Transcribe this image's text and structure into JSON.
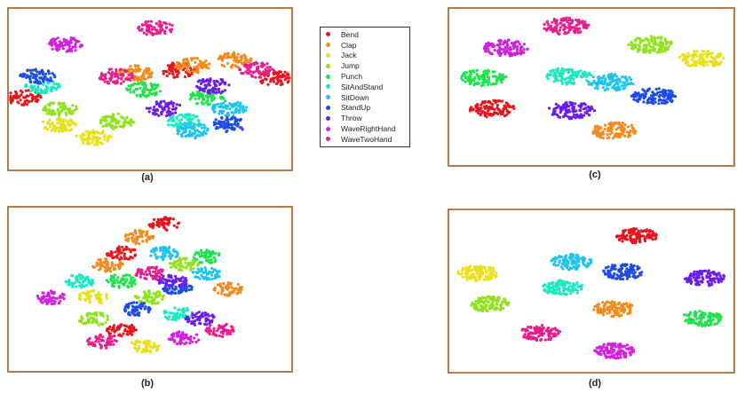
{
  "legend": [
    {
      "label": "Bend",
      "color": "#e8141c"
    },
    {
      "label": "Clap",
      "color": "#f28a1e"
    },
    {
      "label": "Jack",
      "color": "#e8e01a"
    },
    {
      "label": "Jump",
      "color": "#8fe31c"
    },
    {
      "label": "Punch",
      "color": "#1fe34d"
    },
    {
      "label": "SitAndStand",
      "color": "#1ee8c2"
    },
    {
      "label": "SitDown",
      "color": "#1ec4ee"
    },
    {
      "label": "StandUp",
      "color": "#1d4ae8"
    },
    {
      "label": "Throw",
      "color": "#6a1de8"
    },
    {
      "label": "WaveRightHand",
      "color": "#d41ee0"
    },
    {
      "label": "WaveTwoHand",
      "color": "#e81d8e"
    }
  ],
  "captions": {
    "a": "(a)",
    "b": "(b)",
    "c": "(c)",
    "d": "(d)"
  },
  "chart_data": [
    {
      "type": "scatter",
      "panel": "(a)",
      "series": [
        {
          "name": "Bend",
          "clusters": [
            [
              0.6,
              0.38
            ],
            [
              0.94,
              0.43
            ],
            [
              0.05,
              0.55
            ]
          ]
        },
        {
          "name": "Clap",
          "clusters": [
            [
              0.45,
              0.4
            ],
            [
              0.8,
              0.32
            ],
            [
              0.65,
              0.35
            ]
          ]
        },
        {
          "name": "Jack",
          "clusters": [
            [
              0.3,
              0.8
            ],
            [
              0.18,
              0.72
            ]
          ]
        },
        {
          "name": "Jump",
          "clusters": [
            [
              0.18,
              0.62
            ],
            [
              0.38,
              0.7
            ]
          ]
        },
        {
          "name": "Punch",
          "clusters": [
            [
              0.48,
              0.5
            ],
            [
              0.7,
              0.55
            ]
          ]
        },
        {
          "name": "SitAndStand",
          "clusters": [
            [
              0.12,
              0.48
            ],
            [
              0.62,
              0.7
            ]
          ]
        },
        {
          "name": "SitDown",
          "clusters": [
            [
              0.65,
              0.76
            ],
            [
              0.78,
              0.62
            ]
          ]
        },
        {
          "name": "StandUp",
          "clusters": [
            [
              0.1,
              0.42
            ],
            [
              0.78,
              0.72
            ]
          ]
        },
        {
          "name": "Throw",
          "clusters": [
            [
              0.55,
              0.62
            ],
            [
              0.72,
              0.48
            ]
          ]
        },
        {
          "name": "WaveRightHand",
          "clusters": [
            [
              0.2,
              0.22
            ]
          ]
        },
        {
          "name": "WaveTwoHand",
          "clusters": [
            [
              0.52,
              0.12
            ],
            [
              0.38,
              0.42
            ],
            [
              0.88,
              0.38
            ]
          ]
        }
      ]
    },
    {
      "type": "scatter",
      "panel": "(b)",
      "series": [
        {
          "name": "Bend",
          "clusters": [
            [
              0.4,
              0.28
            ],
            [
              0.4,
              0.75
            ],
            [
              0.55,
              0.1
            ]
          ]
        },
        {
          "name": "Clap",
          "clusters": [
            [
              0.46,
              0.18
            ],
            [
              0.35,
              0.35
            ],
            [
              0.78,
              0.5
            ]
          ]
        },
        {
          "name": "Jack",
          "clusters": [
            [
              0.48,
              0.85
            ],
            [
              0.3,
              0.55
            ]
          ]
        },
        {
          "name": "Jump",
          "clusters": [
            [
              0.5,
              0.55
            ],
            [
              0.3,
              0.68
            ],
            [
              0.62,
              0.35
            ]
          ]
        },
        {
          "name": "Punch",
          "clusters": [
            [
              0.4,
              0.45
            ],
            [
              0.7,
              0.3
            ]
          ]
        },
        {
          "name": "SitAndStand",
          "clusters": [
            [
              0.25,
              0.45
            ],
            [
              0.6,
              0.65
            ]
          ]
        },
        {
          "name": "SitDown",
          "clusters": [
            [
              0.7,
              0.4
            ],
            [
              0.55,
              0.28
            ]
          ]
        },
        {
          "name": "StandUp",
          "clusters": [
            [
              0.6,
              0.5
            ],
            [
              0.45,
              0.62
            ]
          ]
        },
        {
          "name": "Throw",
          "clusters": [
            [
              0.68,
              0.68
            ],
            [
              0.58,
              0.45
            ]
          ]
        },
        {
          "name": "WaveRightHand",
          "clusters": [
            [
              0.15,
              0.55
            ],
            [
              0.62,
              0.8
            ]
          ]
        },
        {
          "name": "WaveTwoHand",
          "clusters": [
            [
              0.33,
              0.82
            ],
            [
              0.75,
              0.75
            ],
            [
              0.5,
              0.4
            ]
          ]
        }
      ]
    },
    {
      "type": "scatter",
      "panel": "(c)",
      "series": [
        {
          "name": "Bend",
          "clusters": [
            [
              0.15,
              0.64
            ]
          ]
        },
        {
          "name": "Clap",
          "clusters": [
            [
              0.58,
              0.78
            ]
          ]
        },
        {
          "name": "Jack",
          "clusters": [
            [
              0.89,
              0.32
            ]
          ]
        },
        {
          "name": "Jump",
          "clusters": [
            [
              0.71,
              0.23
            ]
          ]
        },
        {
          "name": "Punch",
          "clusters": [
            [
              0.12,
              0.44
            ]
          ]
        },
        {
          "name": "SitAndStand",
          "clusters": [
            [
              0.42,
              0.43
            ]
          ]
        },
        {
          "name": "SitDown",
          "clusters": [
            [
              0.57,
              0.47
            ]
          ]
        },
        {
          "name": "StandUp",
          "clusters": [
            [
              0.72,
              0.56
            ]
          ]
        },
        {
          "name": "Throw",
          "clusters": [
            [
              0.43,
              0.65
            ]
          ]
        },
        {
          "name": "WaveRightHand",
          "clusters": [
            [
              0.2,
              0.25
            ]
          ]
        },
        {
          "name": "WaveTwoHand",
          "clusters": [
            [
              0.41,
              0.11
            ]
          ]
        }
      ]
    },
    {
      "type": "scatter",
      "panel": "(d)",
      "series": [
        {
          "name": "Bend",
          "clusters": [
            [
              0.66,
              0.16
            ]
          ]
        },
        {
          "name": "Clap",
          "clusters": [
            [
              0.58,
              0.61
            ]
          ]
        },
        {
          "name": "Jack",
          "clusters": [
            [
              0.1,
              0.39
            ]
          ]
        },
        {
          "name": "Jump",
          "clusters": [
            [
              0.14,
              0.58
            ]
          ]
        },
        {
          "name": "Punch",
          "clusters": [
            [
              0.89,
              0.67
            ]
          ]
        },
        {
          "name": "SitAndStand",
          "clusters": [
            [
              0.4,
              0.48
            ]
          ]
        },
        {
          "name": "SitDown",
          "clusters": [
            [
              0.43,
              0.32
            ]
          ]
        },
        {
          "name": "StandUp",
          "clusters": [
            [
              0.61,
              0.38
            ]
          ]
        },
        {
          "name": "Throw",
          "clusters": [
            [
              0.9,
              0.42
            ]
          ]
        },
        {
          "name": "WaveRightHand",
          "clusters": [
            [
              0.58,
              0.87
            ]
          ]
        },
        {
          "name": "WaveTwoHand",
          "clusters": [
            [
              0.32,
              0.76
            ]
          ]
        }
      ]
    }
  ]
}
